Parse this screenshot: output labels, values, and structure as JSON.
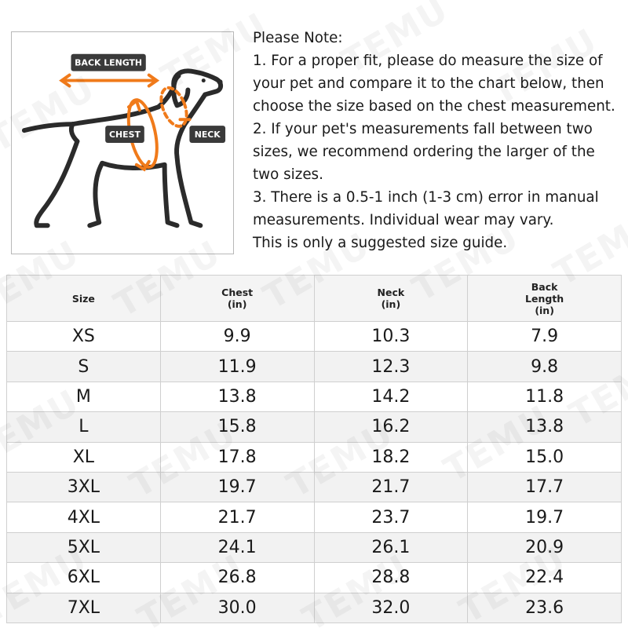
{
  "diagram": {
    "labels": {
      "back_length": "BACK LENGTH",
      "chest": "CHEST",
      "neck": "NECK"
    },
    "colors": {
      "accent": "#f07a1a",
      "label_bg": "#3a3a3a",
      "outline": "#2b2b2b"
    },
    "icon": "dog-outline-icon"
  },
  "notes": [
    "Please Note:",
    "1. For a proper fit, please do measure the size of your pet and compare it to the chart below, then choose the size based on the chest measurement.",
    "2. If your pet's measurements fall between two sizes, we recommend ordering the larger of the two sizes.",
    "3. There is a 0.5-1 inch (1-3 cm) error in manual measurements. Individual wear may vary.",
    "This is only a suggested size guide."
  ],
  "table": {
    "headers": [
      {
        "lines": [
          "Size"
        ]
      },
      {
        "lines": [
          "Chest",
          "(in)"
        ]
      },
      {
        "lines": [
          "Neck",
          "(in)"
        ]
      },
      {
        "lines": [
          "Back",
          "Length",
          "(in)"
        ]
      }
    ],
    "rows": [
      [
        "XS",
        "9.9",
        "10.3",
        "7.9"
      ],
      [
        "S",
        "11.9",
        "12.3",
        "9.8"
      ],
      [
        "M",
        "13.8",
        "14.2",
        "11.8"
      ],
      [
        "L",
        "15.8",
        "16.2",
        "13.8"
      ],
      [
        "XL",
        "17.8",
        "18.2",
        "15.0"
      ],
      [
        "3XL",
        "19.7",
        "21.7",
        "17.7"
      ],
      [
        "4XL",
        "21.7",
        "23.7",
        "19.7"
      ],
      [
        "5XL",
        "24.1",
        "26.1",
        "20.9"
      ],
      [
        "6XL",
        "26.8",
        "28.8",
        "22.4"
      ],
      [
        "7XL",
        "30.0",
        "32.0",
        "23.6"
      ]
    ]
  },
  "watermark": "TEMU"
}
